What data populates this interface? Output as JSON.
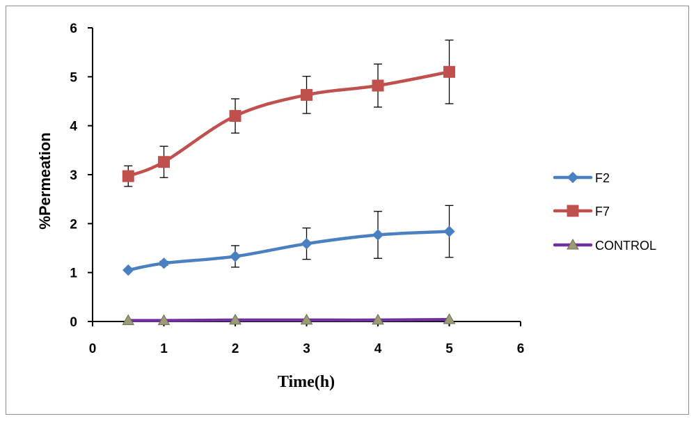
{
  "chart_data": {
    "type": "line",
    "xlabel": "Time(h)",
    "ylabel": "%Permeation",
    "xlim": [
      0,
      6
    ],
    "ylim": [
      0,
      6
    ],
    "x_ticks": [
      "0",
      "1",
      "2",
      "3",
      "4",
      "5",
      "6"
    ],
    "y_ticks": [
      "0",
      "1",
      "2",
      "3",
      "4",
      "5",
      "6"
    ],
    "grid": false,
    "legend_position": "right",
    "series": [
      {
        "name": "F2",
        "color": "#4a7fc1",
        "marker": "diamond",
        "x": [
          0.5,
          1,
          2,
          3,
          4,
          5
        ],
        "y": [
          1.05,
          1.19,
          1.33,
          1.59,
          1.77,
          1.84
        ],
        "error": [
          0.02,
          0.04,
          0.22,
          0.32,
          0.48,
          0.53
        ]
      },
      {
        "name": "F7",
        "color": "#c0504d",
        "marker": "square",
        "x": [
          0.5,
          1,
          2,
          3,
          4,
          5
        ],
        "y": [
          2.97,
          3.26,
          4.2,
          4.63,
          4.82,
          5.1
        ],
        "error": [
          0.21,
          0.32,
          0.35,
          0.38,
          0.44,
          0.65
        ]
      },
      {
        "name": "CONTROL",
        "color": "#7030a0",
        "marker": "triangle",
        "marker_color": "#9b9b76",
        "x": [
          0.5,
          1,
          2,
          3,
          4,
          5
        ],
        "y": [
          0.02,
          0.02,
          0.03,
          0.03,
          0.03,
          0.04
        ],
        "error": [
          0,
          0,
          0,
          0,
          0,
          0
        ]
      }
    ]
  }
}
